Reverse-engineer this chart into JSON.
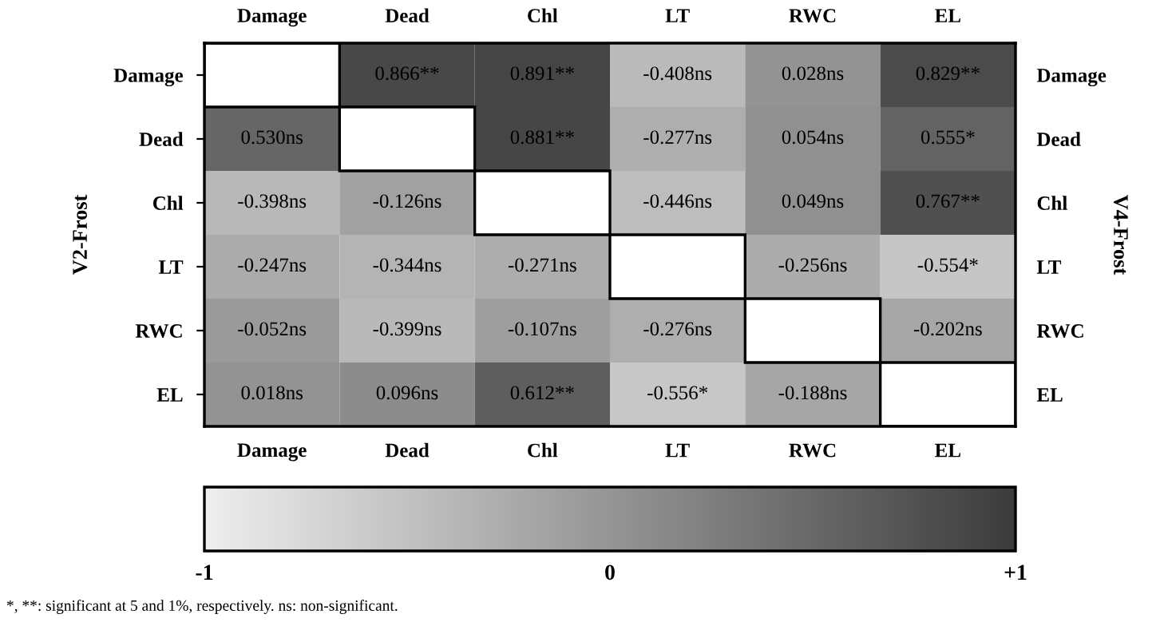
{
  "chart_data": {
    "type": "heatmap",
    "ylabel": "V2-Frost",
    "y2label": "V4-Frost",
    "categories": [
      "Damage",
      "Dead",
      "Chl",
      "LT",
      "RWC",
      "EL"
    ],
    "y_categories": [
      "Damage",
      "Dead",
      "Chl",
      "LT",
      "RWC",
      "EL"
    ],
    "y2_categories": [
      "Damage",
      "Dead",
      "Chl",
      "LT",
      "RWC",
      "EL"
    ],
    "cells": [
      [
        null,
        0.866,
        0.891,
        -0.408,
        0.028,
        0.829
      ],
      [
        0.53,
        null,
        0.881,
        -0.277,
        0.054,
        0.555
      ],
      [
        -0.398,
        -0.126,
        null,
        -0.446,
        0.049,
        0.767
      ],
      [
        -0.247,
        -0.344,
        -0.271,
        null,
        -0.256,
        -0.554
      ],
      [
        -0.052,
        -0.399,
        -0.107,
        -0.276,
        null,
        -0.202
      ],
      [
        0.018,
        0.096,
        0.612,
        -0.556,
        -0.188,
        null
      ]
    ],
    "cell_labels": [
      [
        null,
        "0.866**",
        "0.891**",
        "-0.408ns",
        "0.028ns",
        "0.829**"
      ],
      [
        "0.530ns",
        null,
        "0.881**",
        "-0.277ns",
        "0.054ns",
        "0.555*"
      ],
      [
        "-0.398ns",
        "-0.126ns",
        null,
        "-0.446ns",
        "0.049ns",
        "0.767**"
      ],
      [
        "-0.247ns",
        "-0.344ns",
        "-0.271ns",
        null,
        "-0.256ns",
        "-0.554*"
      ],
      [
        "-0.052ns",
        "-0.399ns",
        "-0.107ns",
        "-0.276ns",
        null,
        "-0.202ns"
      ],
      [
        "0.018ns",
        "0.096ns",
        "0.612**",
        "-0.556*",
        "-0.188ns",
        null
      ]
    ],
    "clim": [
      -1,
      1
    ],
    "cticks": [
      -1,
      0,
      {
        "value": 1,
        "label": "+1"
      }
    ],
    "annotations": [
      "*, **: significant at 5 and 1%, respectively. ns: non-significant."
    ]
  }
}
